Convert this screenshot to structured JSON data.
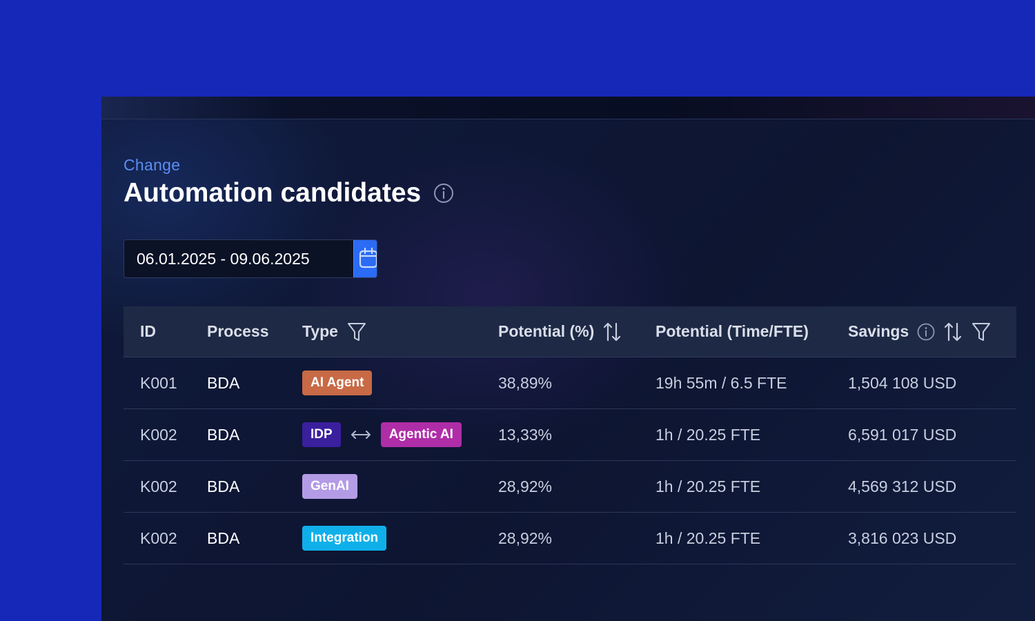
{
  "breadcrumb": "Change",
  "title": "Automation candidates",
  "date_range": {
    "value": "06.01.2025 - 09.06.2025"
  },
  "columns": {
    "id": "ID",
    "process": "Process",
    "type": "Type",
    "potential_pct": "Potential (%)",
    "potential_time": "Potential (Time/FTE)",
    "savings": "Savings"
  },
  "rows": [
    {
      "id": "K001",
      "process": "BDA",
      "types": [
        {
          "label": "AI Agent",
          "color": "#c76a45"
        }
      ],
      "potential_pct": "38,89%",
      "potential_time": "19h 55m / 6.5 FTE",
      "savings": "1,504 108 USD"
    },
    {
      "id": "K002",
      "process": "BDA",
      "types": [
        {
          "label": "IDP",
          "color": "#3a1f9e"
        },
        {
          "label": "Agentic AI",
          "color": "#b02da8"
        }
      ],
      "potential_pct": "13,33%",
      "potential_time": "1h / 20.25 FTE",
      "savings": "6,591 017 USD"
    },
    {
      "id": "K002",
      "process": "BDA",
      "types": [
        {
          "label": "GenAI",
          "color": "#b49be6"
        }
      ],
      "potential_pct": "28,92%",
      "potential_time": "1h / 20.25 FTE",
      "savings": "4,569 312 USD"
    },
    {
      "id": "K002",
      "process": "BDA",
      "types": [
        {
          "label": "Integration",
          "color": "#0fb0ea"
        }
      ],
      "potential_pct": "28,92%",
      "potential_time": "1h / 20.25 FTE",
      "savings": "3,816 023 USD"
    }
  ],
  "icons": {
    "title_info": "info-icon",
    "calendar": "calendar-icon",
    "type_filter": "filter-icon",
    "potential_sort": "sort-icon",
    "savings_info": "info-icon",
    "savings_sort": "sort-icon",
    "savings_filter": "filter-icon",
    "type_link": "double-arrow-icon"
  },
  "colors": {
    "background": "#1628b8",
    "panel": "#0f1834",
    "accent": "#2b6bf5",
    "breadcrumb": "#5b8df2"
  }
}
